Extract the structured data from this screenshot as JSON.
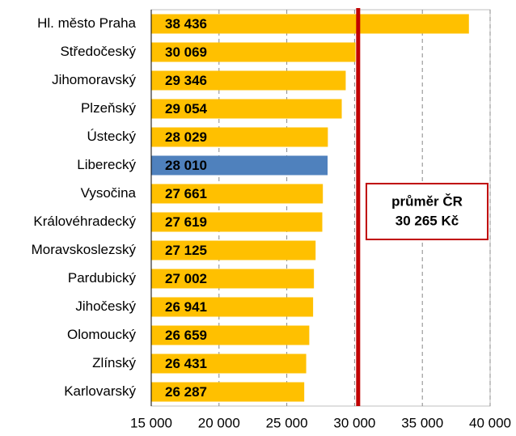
{
  "chart_data": {
    "type": "bar",
    "orientation": "horizontal",
    "categories": [
      "Hl. město Praha",
      "Středočeský",
      "Jihomoravský",
      "Plzeňský",
      "Ústecký",
      "Liberecký",
      "Vysočina",
      "Královéhradecký",
      "Moravskoslezský",
      "Pardubický",
      "Jihočeský",
      "Olomoucký",
      "Zlínský",
      "Karlovarský"
    ],
    "values": [
      38436,
      30069,
      29346,
      29054,
      28029,
      28010,
      27661,
      27619,
      27125,
      27002,
      26941,
      26659,
      26431,
      26287
    ],
    "value_labels": [
      "38 436",
      "30 069",
      "29 346",
      "29 054",
      "28 029",
      "28 010",
      "27 661",
      "27 619",
      "27 125",
      "27 002",
      "26 941",
      "26 659",
      "26 431",
      "26 287"
    ],
    "color": "#ffc000",
    "highlight": {
      "index": 5,
      "color": "#4f81bd"
    },
    "xlim": [
      15000,
      40000
    ],
    "xticks": [
      {
        "value": 15000,
        "label": "15 000"
      },
      {
        "value": 20000,
        "label": "20 000"
      },
      {
        "value": 25000,
        "label": "25 000"
      },
      {
        "value": 30000,
        "label": "30 000"
      },
      {
        "value": 35000,
        "label": "35 000"
      },
      {
        "value": 40000,
        "label": "40 000"
      }
    ],
    "grid": true,
    "reference_line": {
      "value": 30265,
      "color": "#c00000",
      "label": "průměr ČR",
      "value_label": "30 265 Kč"
    }
  }
}
